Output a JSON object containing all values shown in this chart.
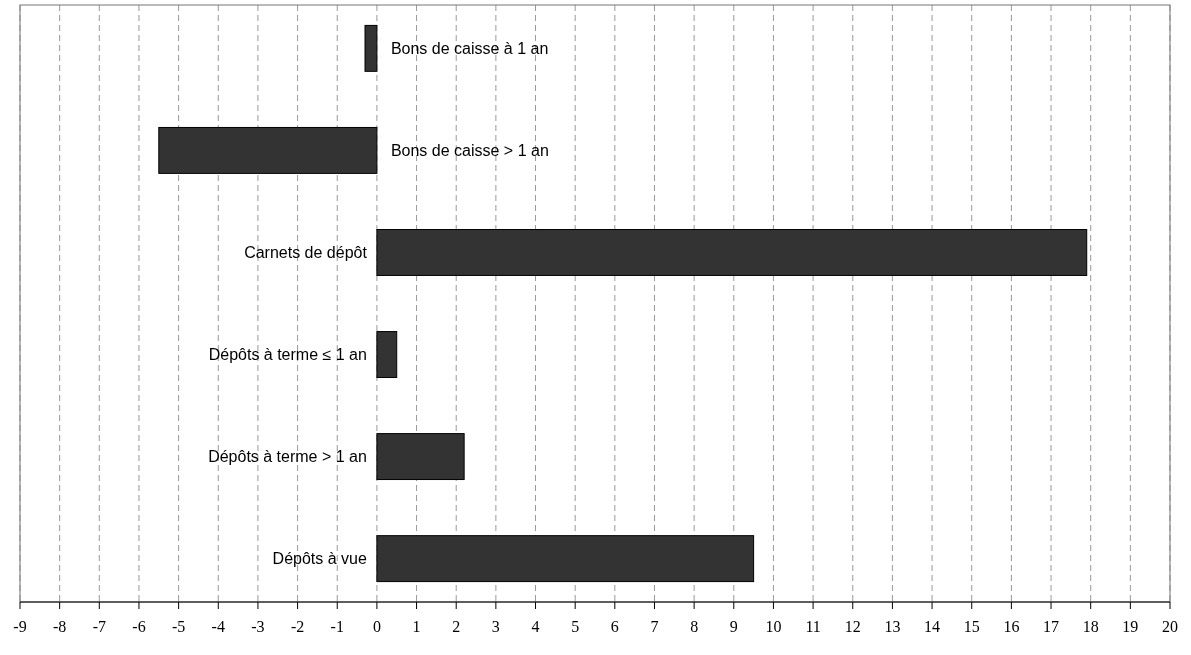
{
  "chart_data": {
    "type": "bar",
    "orientation": "horizontal",
    "categories": [
      "Bons de caisse à 1 an",
      "Bons de caisse > 1 an",
      "Carnets de dépôt",
      "Dépôts à terme ≤ 1 an",
      "Dépôts à terme > 1 an",
      "Dépôts à vue"
    ],
    "values": [
      -0.3,
      -5.5,
      17.9,
      0.5,
      2.2,
      9.5
    ],
    "color": "#333333",
    "xlim": [
      -9,
      20
    ],
    "xticks": [
      -9,
      -8,
      -7,
      -6,
      -5,
      -4,
      -3,
      -2,
      -1,
      0,
      1,
      2,
      3,
      4,
      5,
      6,
      7,
      8,
      9,
      10,
      11,
      12,
      13,
      14,
      15,
      16,
      17,
      18,
      19,
      20
    ],
    "grid": "x"
  }
}
